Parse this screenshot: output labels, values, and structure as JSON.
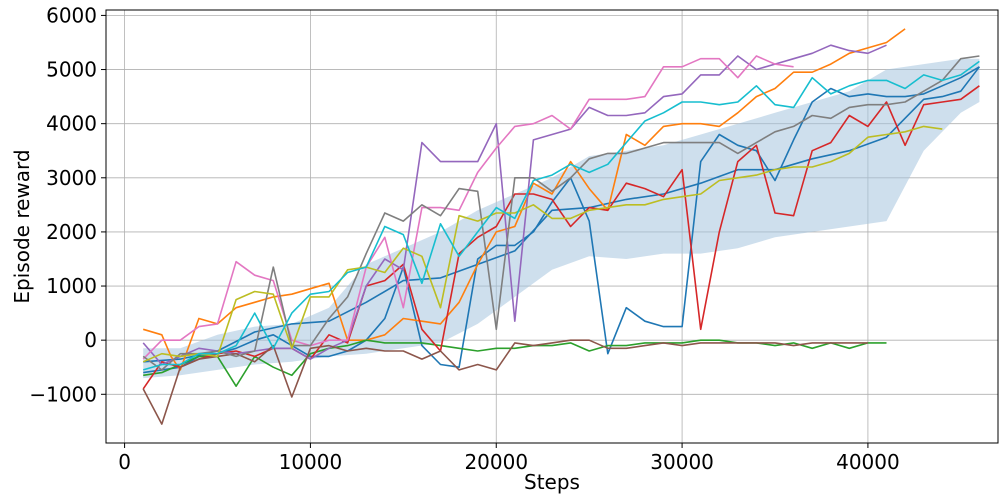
{
  "chart_data": {
    "type": "line",
    "title": "",
    "xlabel": "Steps",
    "ylabel": "Episode reward",
    "xlim": [
      -1000,
      47000
    ],
    "ylim": [
      -1900,
      6100
    ],
    "xticks": [
      0,
      10000,
      20000,
      30000,
      40000
    ],
    "yticks": [
      -1000,
      0,
      1000,
      2000,
      3000,
      4000,
      5000,
      6000
    ],
    "xtick_labels": [
      "0",
      "10000",
      "20000",
      "30000",
      "40000"
    ],
    "ytick_labels": [
      "−1000",
      "0",
      "1000",
      "2000",
      "3000",
      "4000",
      "5000",
      "6000"
    ],
    "grid": true,
    "band": {
      "color": "#a6c4de",
      "x": [
        1000,
        3000,
        5000,
        7000,
        9000,
        11000,
        13000,
        15000,
        17000,
        19000,
        21000,
        23000,
        25000,
        27000,
        29000,
        31000,
        33000,
        35000,
        37000,
        39000,
        41000,
        43000,
        45000,
        46000
      ],
      "upper": [
        -150,
        -150,
        100,
        250,
        300,
        600,
        1400,
        1700,
        2000,
        2400,
        2700,
        3000,
        3400,
        3500,
        3600,
        3800,
        4000,
        4200,
        4400,
        4600,
        5000,
        5100,
        5200,
        5200
      ],
      "lower": [
        -700,
        -650,
        -550,
        -450,
        -400,
        -300,
        -250,
        -150,
        -50,
        300,
        800,
        1300,
        1550,
        1500,
        1600,
        1600,
        1700,
        1900,
        2000,
        2100,
        2200,
        3500,
        4200,
        4400
      ]
    },
    "series": [
      {
        "color": "#1f77b4",
        "x": [
          1000,
          2000,
          3000,
          4000,
          5000,
          6000,
          7000,
          8000,
          9000,
          10000,
          11000,
          12000,
          13000,
          14000,
          15000,
          16000,
          17000,
          18000,
          19000,
          20000,
          21000,
          22000,
          23000,
          24000,
          25000,
          26000,
          27000,
          28000,
          29000,
          30000,
          31000,
          32000,
          33000,
          34000,
          35000,
          36000,
          37000,
          38000,
          39000,
          40000,
          41000,
          42000,
          43000,
          44000,
          45000,
          46000
        ],
        "values": [
          -600,
          -550,
          -500,
          -300,
          -250,
          -150,
          0,
          100,
          -100,
          -300,
          -300,
          -200,
          0,
          400,
          1350,
          -100,
          -450,
          -500,
          1500,
          1750,
          1750,
          2000,
          2550,
          3000,
          2200,
          -250,
          600,
          350,
          250,
          250,
          3300,
          3800,
          3600,
          3500,
          2950,
          3700,
          4400,
          4650,
          4500,
          4550,
          4500,
          4500,
          4550,
          4700,
          4850,
          5050
        ]
      },
      {
        "color": "#1f77b4",
        "x": [
          1000,
          3000,
          5000,
          7000,
          9000,
          11000,
          13000,
          15000,
          17000,
          19000,
          21000,
          23000,
          25000,
          27000,
          29000,
          31000,
          33000,
          35000,
          37000,
          39000,
          41000,
          43000,
          44000,
          45000,
          46000
        ],
        "values": [
          -400,
          -350,
          -200,
          150,
          300,
          350,
          700,
          1100,
          1150,
          1400,
          1650,
          2400,
          2450,
          2600,
          2700,
          2900,
          3150,
          3150,
          3350,
          3500,
          3750,
          4450,
          4500,
          4600,
          5050
        ]
      },
      {
        "color": "#ff7f0e",
        "x": [
          1000,
          2000,
          2500,
          3000,
          4000,
          5000,
          6000,
          7000,
          8000,
          9000,
          10000,
          11000,
          12000,
          13000,
          14000,
          15000,
          16000,
          17000,
          18000,
          19000,
          20000,
          21000,
          22000,
          23000,
          24000,
          25000,
          26000,
          27000,
          28000,
          29000,
          30000,
          31000,
          32000,
          33000,
          34000,
          35000,
          36000,
          37000,
          38000,
          39000,
          40000,
          41000,
          42000
        ],
        "values": [
          200,
          100,
          -300,
          -550,
          400,
          300,
          600,
          700,
          800,
          850,
          950,
          1050,
          0,
          0,
          100,
          400,
          350,
          300,
          700,
          1400,
          2000,
          2100,
          2900,
          2700,
          3300,
          2800,
          2400,
          3800,
          3600,
          3950,
          4000,
          4000,
          3950,
          4200,
          4500,
          4650,
          4950,
          4950,
          5100,
          5300,
          5400,
          5500,
          5750
        ]
      },
      {
        "color": "#2ca02c",
        "x": [
          1000,
          2000,
          3000,
          4000,
          5000,
          6000,
          7000,
          8000,
          9000,
          10000,
          11000,
          12000,
          13000,
          14000,
          15000,
          16000,
          17000,
          18000,
          19000,
          20000,
          21000,
          22000,
          23000,
          24000,
          25000,
          26000,
          27000,
          28000,
          29000,
          30000,
          31000,
          32000,
          33000,
          34000,
          35000,
          36000,
          37000,
          38000,
          39000,
          40000,
          41000
        ],
        "values": [
          -650,
          -600,
          -450,
          -300,
          -300,
          -850,
          -300,
          -500,
          -650,
          -250,
          -150,
          -100,
          0,
          -50,
          -50,
          -50,
          -100,
          -150,
          -200,
          -150,
          -150,
          -100,
          -100,
          -50,
          -200,
          -100,
          -100,
          -50,
          -50,
          -50,
          0,
          0,
          -50,
          -50,
          -100,
          -50,
          -150,
          -50,
          -150,
          -50,
          -50
        ]
      },
      {
        "color": "#d62728",
        "x": [
          1000,
          2000,
          3000,
          4000,
          5000,
          6000,
          7000,
          8000,
          9000,
          10000,
          11000,
          12000,
          13000,
          14000,
          15000,
          16000,
          17000,
          18000,
          19000,
          20000,
          21000,
          22000,
          23000,
          24000,
          25000,
          26000,
          27000,
          28000,
          29000,
          30000,
          31000,
          32000,
          33000,
          34000,
          35000,
          36000,
          37000,
          38000,
          39000,
          40000,
          41000,
          42000,
          43000,
          44000,
          45000,
          46000
        ],
        "values": [
          -900,
          -400,
          -500,
          -350,
          -250,
          -200,
          -300,
          -150,
          -150,
          -350,
          100,
          -50,
          1000,
          1100,
          1400,
          200,
          -200,
          1600,
          1900,
          2100,
          2700,
          2700,
          2600,
          2100,
          2450,
          2400,
          2900,
          2800,
          2650,
          3150,
          200,
          2000,
          3300,
          3600,
          2350,
          2300,
          3500,
          3650,
          4150,
          3950,
          4400,
          3600,
          4350,
          4400,
          4450,
          4700
        ]
      },
      {
        "color": "#9467bd",
        "x": [
          1000,
          2000,
          3000,
          4000,
          5000,
          6000,
          7000,
          8000,
          9000,
          10000,
          11000,
          12000,
          13000,
          14000,
          15000,
          16000,
          17000,
          18000,
          19000,
          20000,
          21000,
          22000,
          23000,
          24000,
          25000,
          26000,
          27000,
          28000,
          29000,
          30000,
          31000,
          32000,
          33000,
          34000,
          35000,
          36000,
          37000,
          38000,
          39000,
          40000,
          41000
        ],
        "values": [
          -50,
          -450,
          -300,
          -150,
          -200,
          -250,
          -200,
          -150,
          -150,
          -350,
          -150,
          0,
          1000,
          1500,
          1300,
          3650,
          3300,
          3300,
          3300,
          4000,
          350,
          3700,
          3800,
          3900,
          4300,
          4150,
          4150,
          4200,
          4500,
          4550,
          4900,
          4900,
          5250,
          5000,
          5100,
          5200,
          5300,
          5450,
          5350,
          5300,
          5450
        ]
      },
      {
        "color": "#8c564b",
        "x": [
          1000,
          2000,
          3000,
          4000,
          5000,
          6000,
          7000,
          8000,
          9000,
          10000,
          11000,
          12000,
          13000,
          14000,
          15000,
          16000,
          17000,
          18000,
          19000,
          20000,
          21000,
          22000,
          23000,
          24000,
          25000,
          26000,
          27000,
          28000,
          29000,
          30000,
          31000,
          32000,
          33000,
          34000,
          35000,
          36000,
          37000,
          38000,
          39000,
          40000
        ],
        "values": [
          -900,
          -1550,
          -500,
          -350,
          -300,
          -250,
          -400,
          -100,
          -1050,
          -150,
          -100,
          -200,
          -150,
          -200,
          -200,
          -350,
          -200,
          -550,
          -450,
          -550,
          -50,
          -100,
          -50,
          0,
          0,
          -150,
          -150,
          -100,
          -50,
          -100,
          -50,
          -50,
          -50,
          -50,
          -50,
          -100,
          -50,
          -50,
          -50,
          -50
        ]
      },
      {
        "color": "#e377c2",
        "x": [
          1000,
          2000,
          3000,
          4000,
          5000,
          6000,
          7000,
          8000,
          9000,
          10000,
          11000,
          12000,
          13000,
          14000,
          15000,
          16000,
          17000,
          18000,
          19000,
          20000,
          21000,
          22000,
          23000,
          24000,
          25000,
          26000,
          27000,
          28000,
          29000,
          30000,
          31000,
          32000,
          33000,
          34000,
          35000,
          36000
        ],
        "values": [
          -350,
          0,
          0,
          250,
          300,
          1450,
          1200,
          1100,
          0,
          -100,
          0,
          0,
          1350,
          1900,
          600,
          2450,
          2450,
          2400,
          3100,
          3550,
          3950,
          4000,
          4150,
          3900,
          4450,
          4450,
          4450,
          4500,
          5050,
          5050,
          5200,
          5200,
          4850,
          5250,
          5100,
          5050
        ]
      },
      {
        "color": "#7f7f7f",
        "x": [
          1000,
          2000,
          3000,
          4000,
          5000,
          6000,
          7000,
          8000,
          9000,
          10000,
          11000,
          12000,
          13000,
          14000,
          15000,
          16000,
          17000,
          18000,
          19000,
          20000,
          21000,
          22000,
          23000,
          24000,
          25000,
          26000,
          27000,
          28000,
          29000,
          30000,
          31000,
          32000,
          33000,
          34000,
          35000,
          36000,
          37000,
          38000,
          39000,
          40000,
          41000,
          42000,
          43000,
          44000,
          45000,
          46000
        ],
        "values": [
          -300,
          -550,
          -250,
          -250,
          -200,
          -300,
          -200,
          1350,
          -100,
          -100,
          400,
          800,
          1600,
          2350,
          2200,
          2500,
          2300,
          2800,
          2750,
          200,
          3000,
          3000,
          2750,
          3000,
          3350,
          3450,
          3450,
          3550,
          3650,
          3650,
          3650,
          3650,
          3450,
          3650,
          3850,
          3950,
          4150,
          4100,
          4300,
          4350,
          4350,
          4400,
          4600,
          4800,
          5200,
          5250
        ]
      },
      {
        "color": "#bcbd22",
        "x": [
          1000,
          2000,
          3000,
          4000,
          5000,
          6000,
          7000,
          8000,
          9000,
          10000,
          11000,
          12000,
          13000,
          14000,
          15000,
          16000,
          17000,
          18000,
          19000,
          20000,
          21000,
          22000,
          23000,
          24000,
          25000,
          26000,
          27000,
          28000,
          29000,
          30000,
          31000,
          32000,
          33000,
          34000,
          35000,
          36000,
          37000,
          38000,
          39000,
          40000,
          41000,
          42000,
          43000,
          44000
        ],
        "values": [
          -400,
          -250,
          -300,
          -250,
          -300,
          750,
          900,
          850,
          -150,
          800,
          800,
          1300,
          1350,
          1250,
          1700,
          1550,
          600,
          2300,
          2200,
          2350,
          2350,
          2500,
          2250,
          2250,
          2400,
          2450,
          2500,
          2500,
          2600,
          2650,
          2700,
          2950,
          3000,
          3050,
          3150,
          3200,
          3200,
          3300,
          3450,
          3750,
          3800,
          3850,
          3950,
          3900
        ]
      },
      {
        "color": "#17becf",
        "x": [
          1000,
          2000,
          3000,
          4000,
          5000,
          6000,
          7000,
          8000,
          9000,
          10000,
          11000,
          12000,
          13000,
          14000,
          15000,
          16000,
          17000,
          18000,
          19000,
          20000,
          21000,
          22000,
          23000,
          24000,
          25000,
          26000,
          27000,
          28000,
          29000,
          30000,
          31000,
          32000,
          33000,
          34000,
          35000,
          36000,
          37000,
          38000,
          39000,
          40000,
          41000,
          42000,
          43000,
          44000,
          45000,
          46000
        ],
        "values": [
          -550,
          -450,
          -450,
          -250,
          -250,
          -100,
          500,
          -150,
          500,
          850,
          900,
          1250,
          1350,
          2100,
          1950,
          1050,
          2150,
          1550,
          2000,
          2450,
          2250,
          2950,
          3050,
          3250,
          3100,
          3250,
          3650,
          4050,
          4200,
          4400,
          4400,
          4350,
          4400,
          4700,
          4350,
          4300,
          4850,
          4550,
          4700,
          4800,
          4800,
          4650,
          4900,
          4800,
          4900,
          5150
        ]
      }
    ]
  }
}
